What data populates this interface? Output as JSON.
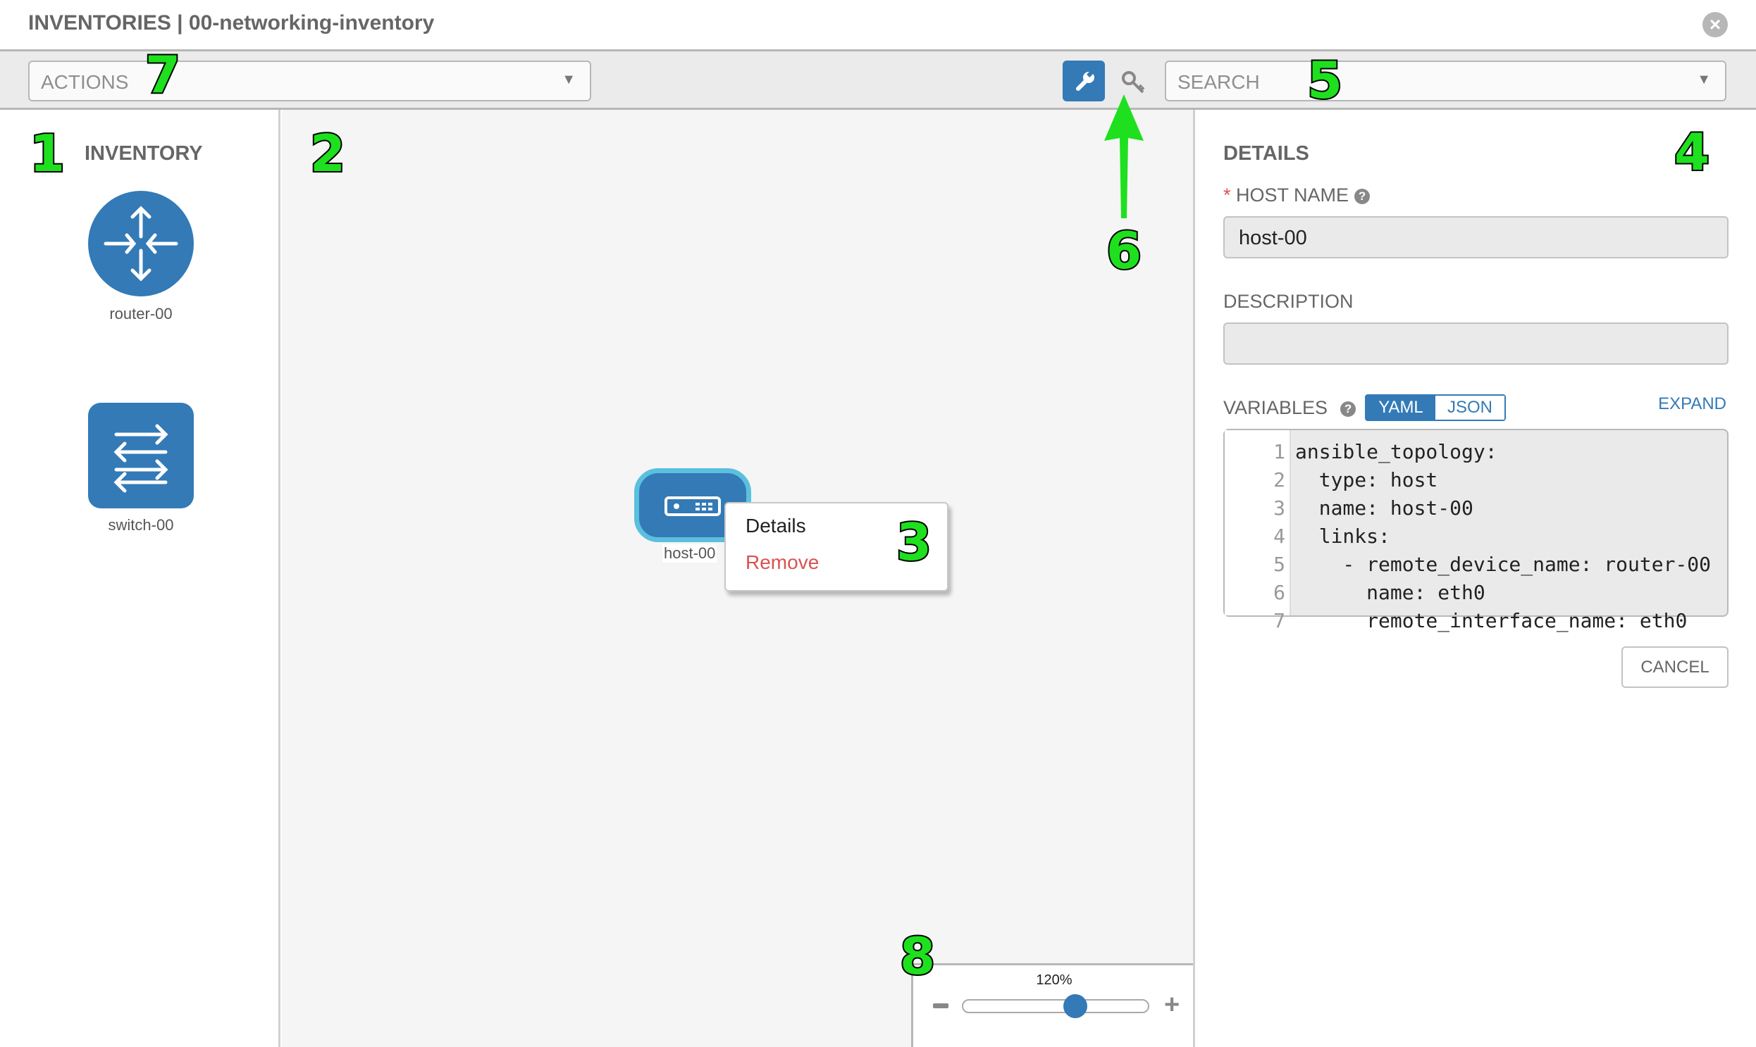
{
  "header": {
    "title": "INVENTORIES | 00-networking-inventory",
    "close_icon": "close-circle-icon"
  },
  "toolbar": {
    "actions_placeholder": "ACTIONS",
    "search_placeholder": "SEARCH",
    "wrench_icon": "wrench-icon",
    "key_icon": "key-icon"
  },
  "inventory": {
    "title": "INVENTORY",
    "items": [
      {
        "label": "router-00",
        "icon": "router-icon"
      },
      {
        "label": "switch-00",
        "icon": "switch-icon"
      }
    ]
  },
  "canvas": {
    "host": {
      "label": "host-00",
      "icon": "server-icon"
    },
    "context_menu": {
      "details": "Details",
      "remove": "Remove"
    },
    "zoom": {
      "label": "120%",
      "value_percent": 120,
      "slider_fraction": 0.62
    }
  },
  "details": {
    "title": "DETAILS",
    "host_name_label": "HOST NAME",
    "required_mark": "*",
    "host_name_value": "host-00",
    "description_label": "DESCRIPTION",
    "description_value": "",
    "variables_label": "VARIABLES",
    "yaml": "YAML",
    "json": "JSON",
    "expand": "EXPAND",
    "code_lines": [
      {
        "n": "1",
        "t": "ansible_topology:"
      },
      {
        "n": "2",
        "t": "  type: host"
      },
      {
        "n": "3",
        "t": "  name: host-00"
      },
      {
        "n": "4",
        "t": "  links:"
      },
      {
        "n": "5",
        "t": "    - remote_device_name: router-00"
      },
      {
        "n": "6",
        "t": "      name: eth0"
      },
      {
        "n": "7",
        "t": "      remote_interface_name: eth0"
      }
    ],
    "cancel": "CANCEL"
  },
  "annotations": [
    "1",
    "2",
    "3",
    "4",
    "5",
    "6",
    "7",
    "8"
  ],
  "colors": {
    "accent": "#337ab7",
    "highlight": "#5bc0de",
    "danger": "#d9534f",
    "annotation": "#1ee01e"
  }
}
